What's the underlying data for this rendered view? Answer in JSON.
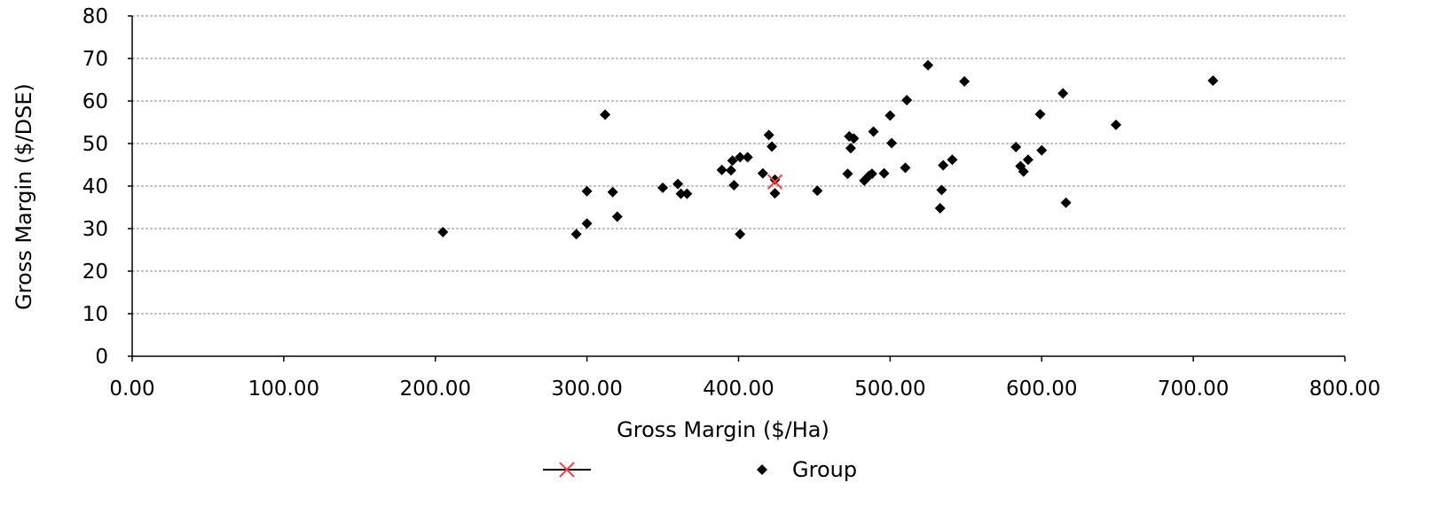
{
  "chart_data": {
    "type": "scatter",
    "title": "",
    "xlabel": "Gross Margin ($/Ha)",
    "ylabel": "Gross Margin ($/DSE)",
    "xlim": [
      0,
      800
    ],
    "ylim": [
      0,
      80
    ],
    "xticks": [
      "0.00",
      "100.00",
      "200.00",
      "300.00",
      "400.00",
      "500.00",
      "600.00",
      "700.00",
      "800.00"
    ],
    "yticks": [
      "0",
      "10",
      "20",
      "30",
      "40",
      "50",
      "60",
      "70",
      "80"
    ],
    "grid": "horizontal-dashed",
    "legend_position": "bottom",
    "series": [
      {
        "name": "",
        "marker": "x",
        "color": "#ff3b3b",
        "points": [
          [
            424,
            41
          ]
        ]
      },
      {
        "name": "Group",
        "marker": "diamond",
        "color": "#000000",
        "points": [
          [
            205,
            29.2
          ],
          [
            293,
            28.7
          ],
          [
            300,
            31.2
          ],
          [
            300,
            38.8
          ],
          [
            312,
            56.8
          ],
          [
            317,
            38.6
          ],
          [
            320,
            32.8
          ],
          [
            350,
            39.6
          ],
          [
            360,
            40.5
          ],
          [
            362,
            38.2
          ],
          [
            366,
            38.2
          ],
          [
            389,
            43.8
          ],
          [
            395,
            43.7
          ],
          [
            396,
            46.0
          ],
          [
            397,
            40.2
          ],
          [
            401,
            46.8
          ],
          [
            401,
            28.7
          ],
          [
            406,
            46.8
          ],
          [
            416,
            43.0
          ],
          [
            420,
            52.0
          ],
          [
            422,
            49.3
          ],
          [
            424,
            41.5
          ],
          [
            424,
            38.3
          ],
          [
            452,
            38.9
          ],
          [
            472,
            42.9
          ],
          [
            473,
            51.7
          ],
          [
            474,
            48.9
          ],
          [
            476,
            51.2
          ],
          [
            483,
            41.3
          ],
          [
            486,
            42.4
          ],
          [
            488,
            42.9
          ],
          [
            489,
            52.8
          ],
          [
            496,
            43.0
          ],
          [
            500,
            56.6
          ],
          [
            501,
            50.1
          ],
          [
            510,
            44.3
          ],
          [
            511,
            60.2
          ],
          [
            525,
            68.4
          ],
          [
            533,
            34.8
          ],
          [
            534,
            39.1
          ],
          [
            535,
            44.9
          ],
          [
            541,
            46.2
          ],
          [
            549,
            64.6
          ],
          [
            583,
            49.2
          ],
          [
            586,
            44.7
          ],
          [
            588,
            43.4
          ],
          [
            591,
            46.2
          ],
          [
            599,
            56.9
          ],
          [
            600,
            48.4
          ],
          [
            614,
            61.8
          ],
          [
            616,
            36.1
          ],
          [
            649,
            54.4
          ],
          [
            713,
            64.8
          ]
        ]
      }
    ]
  }
}
